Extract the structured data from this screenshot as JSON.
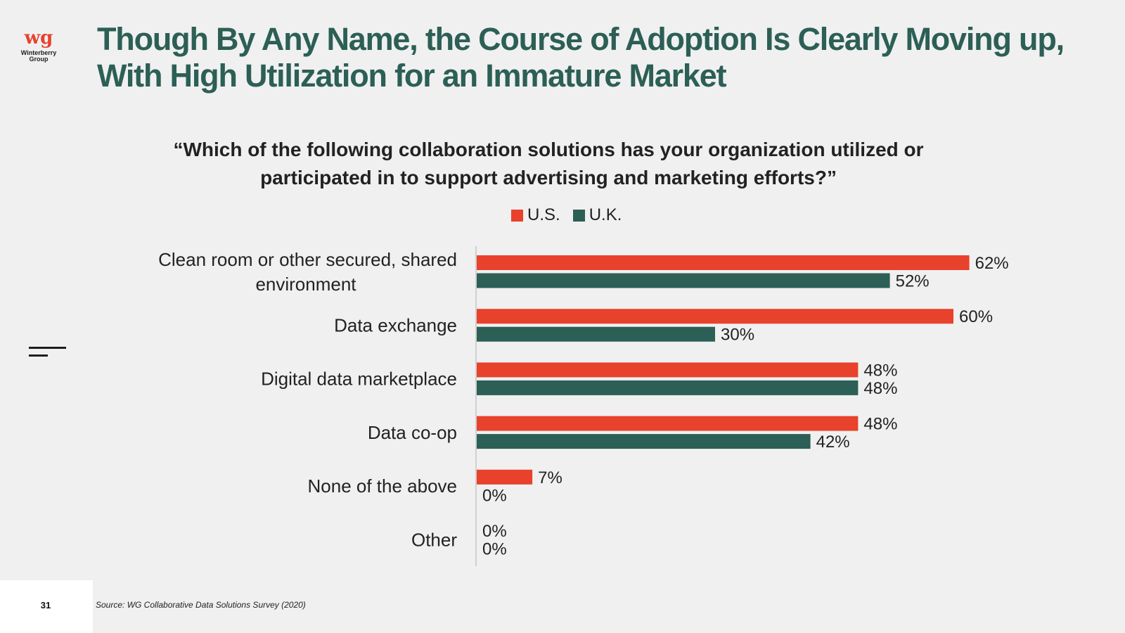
{
  "logo": {
    "mark": "wg",
    "name_line1": "Winterberry",
    "name_line2": "Group"
  },
  "title": "Though By Any Name, the Course of Adoption Is Clearly Moving up, With High Utilization for an Immature Market",
  "page_number": "31",
  "source": "Source: WG Collaborative Data Solutions Survey (2020)",
  "colors": {
    "us": "#e8412c",
    "uk": "#2c5f55",
    "title": "#2c5f55"
  },
  "chart_data": {
    "type": "bar",
    "orientation": "horizontal",
    "title": "“Which of the following collaboration solutions has your organization utilized or participated in to support advertising and marketing efforts?”",
    "categories": [
      [
        "Clean room or other secured, shared",
        "environment"
      ],
      [
        "Data exchange"
      ],
      [
        "Digital data marketplace"
      ],
      [
        "Data co-op"
      ],
      [
        "None of the above"
      ],
      [
        "Other"
      ]
    ],
    "series": [
      {
        "name": "U.S.",
        "color": "#e8412c",
        "values": [
          62,
          60,
          48,
          48,
          7,
          0
        ]
      },
      {
        "name": "U.K.",
        "color": "#2c5f55",
        "values": [
          52,
          30,
          48,
          42,
          0,
          0
        ]
      }
    ],
    "value_suffix": "%",
    "xlim": [
      0,
      70
    ],
    "legend_position": "top-center",
    "grid": false
  }
}
